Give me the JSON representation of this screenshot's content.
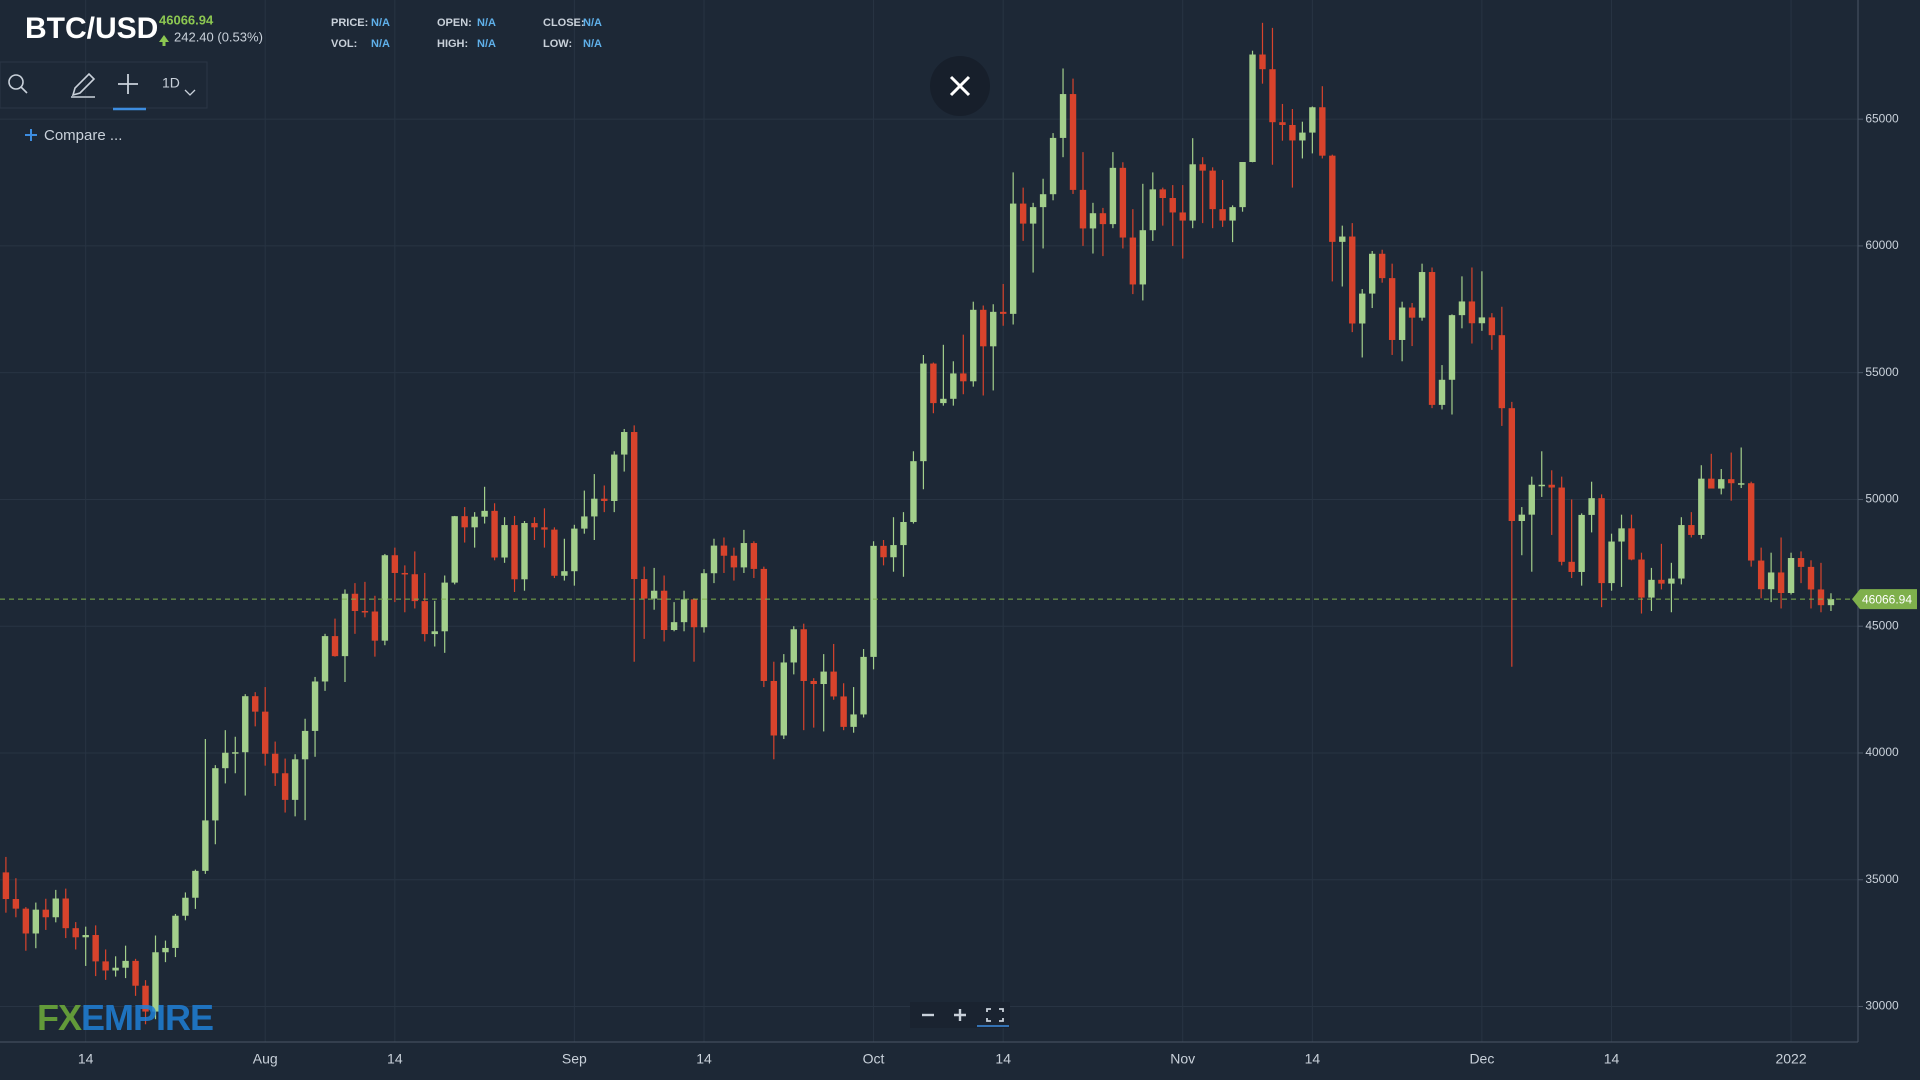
{
  "header": {
    "symbol": "BTC/USD",
    "change": "242.40 (0.53%)",
    "fields": [
      [
        "PRICE:",
        "N/A"
      ],
      [
        "OPEN:",
        "N/A"
      ],
      [
        "CLOSE:",
        "N/A"
      ],
      [
        "VOL:",
        "N/A"
      ],
      [
        "HIGH:",
        "N/A"
      ],
      [
        "LOW:",
        "N/A"
      ]
    ]
  },
  "toolbar": {
    "interval": "1D",
    "compare": "Compare ..."
  },
  "logo": [
    "FX",
    "EMPIRE"
  ],
  "chart_data": {
    "type": "candlestick",
    "title": "BTC/USD",
    "up_color": "#a3cf8b",
    "down_color": "#d8432c",
    "grid": true,
    "last_price": 46066.94,
    "last_price_color": "#7fb04c",
    "ylim": [
      28600,
      69700
    ],
    "yticks": [
      30000,
      35000,
      40000,
      45000,
      50000,
      55000,
      60000,
      65000
    ],
    "categories": [
      null,
      null,
      null,
      null,
      null,
      null,
      null,
      null,
      "14",
      null,
      null,
      null,
      null,
      null,
      null,
      null,
      null,
      null,
      null,
      null,
      null,
      null,
      null,
      null,
      null,
      null,
      "Aug",
      null,
      null,
      null,
      null,
      null,
      null,
      null,
      null,
      null,
      null,
      null,
      null,
      "14",
      null,
      null,
      null,
      null,
      null,
      null,
      null,
      null,
      null,
      null,
      null,
      null,
      null,
      null,
      null,
      null,
      null,
      "Sep",
      null,
      null,
      null,
      null,
      null,
      null,
      null,
      null,
      null,
      null,
      null,
      null,
      "14",
      null,
      null,
      null,
      null,
      null,
      null,
      null,
      null,
      null,
      null,
      null,
      null,
      null,
      null,
      null,
      null,
      "Oct",
      null,
      null,
      null,
      null,
      null,
      null,
      null,
      null,
      null,
      null,
      null,
      null,
      "14",
      null,
      null,
      null,
      null,
      null,
      null,
      null,
      null,
      null,
      null,
      null,
      null,
      null,
      null,
      null,
      null,
      null,
      "Nov",
      null,
      null,
      null,
      null,
      null,
      null,
      null,
      null,
      null,
      null,
      null,
      null,
      "14",
      null,
      null,
      null,
      null,
      null,
      null,
      null,
      null,
      null,
      null,
      null,
      null,
      null,
      null,
      null,
      null,
      "Dec",
      null,
      null,
      null,
      null,
      null,
      null,
      null,
      null,
      null,
      null,
      null,
      null,
      "14",
      null,
      null,
      null,
      null,
      null,
      null,
      null,
      null,
      null,
      null,
      null,
      null,
      null,
      null,
      null,
      null,
      null,
      "2022",
      null,
      null,
      null,
      null
    ],
    "ohlc": [
      [
        35290,
        35900,
        33700,
        34240
      ],
      [
        34240,
        35060,
        33520,
        33860
      ],
      [
        33860,
        33920,
        32200,
        32880
      ],
      [
        32880,
        34100,
        32300,
        33820
      ],
      [
        33820,
        34250,
        33020,
        33520
      ],
      [
        33520,
        34600,
        33320,
        34260
      ],
      [
        34260,
        34650,
        32700,
        33090
      ],
      [
        33090,
        33330,
        32250,
        32730
      ],
      [
        32730,
        33150,
        31600,
        32820
      ],
      [
        32820,
        33200,
        31200,
        31780
      ],
      [
        31780,
        32250,
        31050,
        31420
      ],
      [
        31420,
        31980,
        31180,
        31530
      ],
      [
        31530,
        32400,
        31120,
        31800
      ],
      [
        31800,
        31880,
        30420,
        30820
      ],
      [
        30820,
        31040,
        29300,
        29800
      ],
      [
        29800,
        32800,
        29500,
        32140
      ],
      [
        32140,
        32600,
        31750,
        32310
      ],
      [
        32310,
        33650,
        31950,
        33580
      ],
      [
        33580,
        34500,
        33400,
        34290
      ],
      [
        34290,
        35400,
        33850,
        35350
      ],
      [
        35350,
        40550,
        35230,
        37340
      ],
      [
        37340,
        39520,
        36400,
        39400
      ],
      [
        39400,
        40900,
        38800,
        40010
      ],
      [
        40010,
        40640,
        39200,
        40030
      ],
      [
        40030,
        42320,
        38320,
        42240
      ],
      [
        42240,
        42400,
        41050,
        41630
      ],
      [
        41630,
        42600,
        39500,
        39970
      ],
      [
        39970,
        40450,
        38700,
        39200
      ],
      [
        39200,
        39780,
        37650,
        38150
      ],
      [
        38150,
        39950,
        37500,
        39750
      ],
      [
        39750,
        41350,
        37350,
        40870
      ],
      [
        40870,
        43000,
        39850,
        42820
      ],
      [
        42820,
        44700,
        42450,
        44610
      ],
      [
        44610,
        45300,
        43800,
        43820
      ],
      [
        43820,
        46450,
        42800,
        46280
      ],
      [
        46280,
        46700,
        44700,
        45600
      ],
      [
        45600,
        46750,
        45350,
        45580
      ],
      [
        45580,
        46200,
        43800,
        44430
      ],
      [
        44430,
        47850,
        44250,
        47800
      ],
      [
        47800,
        48100,
        45950,
        47100
      ],
      [
        47100,
        47400,
        45550,
        47050
      ],
      [
        47050,
        47950,
        45700,
        45990
      ],
      [
        45990,
        47100,
        44400,
        44690
      ],
      [
        44690,
        46000,
        44200,
        44800
      ],
      [
        44800,
        47000,
        43950,
        46720
      ],
      [
        46720,
        49350,
        46650,
        49340
      ],
      [
        49340,
        49700,
        48300,
        48900
      ],
      [
        48900,
        49500,
        48100,
        49320
      ],
      [
        49320,
        50500,
        49050,
        49550
      ],
      [
        49550,
        49850,
        47600,
        47710
      ],
      [
        47710,
        49300,
        47500,
        48990
      ],
      [
        48990,
        49350,
        46350,
        46850
      ],
      [
        46850,
        49150,
        46400,
        49070
      ],
      [
        49070,
        49300,
        48400,
        48900
      ],
      [
        48900,
        49650,
        48100,
        48810
      ],
      [
        48810,
        48900,
        46900,
        46990
      ],
      [
        46990,
        48450,
        46800,
        47170
      ],
      [
        47170,
        49000,
        46600,
        48850
      ],
      [
        48850,
        50350,
        48650,
        49330
      ],
      [
        49330,
        51000,
        48400,
        50030
      ],
      [
        50030,
        50550,
        49500,
        49940
      ],
      [
        49940,
        51900,
        49500,
        51770
      ],
      [
        51770,
        52780,
        51100,
        52660
      ],
      [
        52660,
        52920,
        43600,
        46860
      ],
      [
        46860,
        47350,
        44500,
        46090
      ],
      [
        46090,
        47300,
        45650,
        46400
      ],
      [
        46400,
        47000,
        44400,
        44850
      ],
      [
        44850,
        45950,
        44800,
        45160
      ],
      [
        45160,
        46400,
        44800,
        46060
      ],
      [
        46060,
        46100,
        43600,
        44960
      ],
      [
        44960,
        47250,
        44750,
        47090
      ],
      [
        47090,
        48450,
        46700,
        48180
      ],
      [
        48180,
        48500,
        47100,
        47780
      ],
      [
        47780,
        48100,
        46800,
        47320
      ],
      [
        47320,
        48800,
        47100,
        48280
      ],
      [
        48280,
        48350,
        46900,
        47260
      ],
      [
        47260,
        47350,
        42600,
        42840
      ],
      [
        42840,
        43600,
        39750,
        40690
      ],
      [
        40690,
        43900,
        40550,
        43570
      ],
      [
        43570,
        45000,
        43100,
        44880
      ],
      [
        44880,
        45100,
        40900,
        42840
      ],
      [
        42840,
        42950,
        41000,
        42720
      ],
      [
        42720,
        43900,
        40850,
        43210
      ],
      [
        43210,
        44300,
        42100,
        42230
      ],
      [
        42230,
        42750,
        40900,
        41030
      ],
      [
        41030,
        42600,
        40800,
        41520
      ],
      [
        41520,
        44100,
        41400,
        43790
      ],
      [
        43790,
        48350,
        43300,
        48170
      ],
      [
        48170,
        48400,
        47400,
        47720
      ],
      [
        47720,
        49300,
        47150,
        48200
      ],
      [
        48200,
        49500,
        46950,
        49110
      ],
      [
        49110,
        51900,
        49050,
        51510
      ],
      [
        51510,
        55700,
        50400,
        55360
      ],
      [
        55360,
        55400,
        53400,
        53800
      ],
      [
        53800,
        56100,
        53700,
        53970
      ],
      [
        53970,
        55450,
        53700,
        54970
      ],
      [
        54970,
        56500,
        54150,
        54660
      ],
      [
        54660,
        57800,
        54450,
        57480
      ],
      [
        57480,
        57650,
        54100,
        56040
      ],
      [
        56040,
        57700,
        54300,
        57400
      ],
      [
        57400,
        58500,
        56850,
        57320
      ],
      [
        57320,
        62900,
        56900,
        61670
      ],
      [
        61670,
        62300,
        60200,
        60880
      ],
      [
        60880,
        61700,
        58950,
        61530
      ],
      [
        61530,
        62650,
        59900,
        62040
      ],
      [
        62040,
        64450,
        61800,
        64260
      ],
      [
        64260,
        67000,
        63500,
        65990
      ],
      [
        65990,
        66600,
        62050,
        62210
      ],
      [
        62210,
        63700,
        60000,
        60690
      ],
      [
        60690,
        61700,
        59700,
        61290
      ],
      [
        61290,
        61500,
        59600,
        60860
      ],
      [
        60860,
        63700,
        60700,
        63080
      ],
      [
        63080,
        63300,
        59900,
        60330
      ],
      [
        60330,
        61450,
        58100,
        58480
      ],
      [
        58480,
        62450,
        57850,
        60620
      ],
      [
        60620,
        62900,
        60200,
        62230
      ],
      [
        62230,
        62300,
        60800,
        61890
      ],
      [
        61890,
        62400,
        60000,
        61320
      ],
      [
        61320,
        62400,
        59500,
        61000
      ],
      [
        61000,
        64250,
        60700,
        63220
      ],
      [
        63220,
        63500,
        60900,
        62970
      ],
      [
        62970,
        63100,
        60700,
        61450
      ],
      [
        61450,
        62600,
        60750,
        61000
      ],
      [
        61000,
        61600,
        60150,
        61530
      ],
      [
        61530,
        63300,
        61350,
        63310
      ],
      [
        63310,
        67700,
        63300,
        67550
      ],
      [
        67550,
        68800,
        66400,
        66970
      ],
      [
        66970,
        68600,
        63200,
        64880
      ],
      [
        64880,
        65600,
        64150,
        64770
      ],
      [
        64770,
        65400,
        62300,
        64160
      ],
      [
        64160,
        64900,
        63450,
        64470
      ],
      [
        64470,
        65500,
        63650,
        65470
      ],
      [
        65470,
        66300,
        63450,
        63560
      ],
      [
        63560,
        63600,
        58600,
        60160
      ],
      [
        60160,
        60800,
        58400,
        60370
      ],
      [
        60370,
        60900,
        56600,
        56940
      ],
      [
        56940,
        58300,
        55600,
        58120
      ],
      [
        58120,
        59800,
        57550,
        59690
      ],
      [
        59690,
        59850,
        58550,
        58730
      ],
      [
        58730,
        59300,
        55700,
        56290
      ],
      [
        56290,
        57800,
        55450,
        57570
      ],
      [
        57570,
        57750,
        56050,
        57170
      ],
      [
        57170,
        59300,
        57050,
        58970
      ],
      [
        58970,
        59150,
        53600,
        53730
      ],
      [
        53730,
        55300,
        53550,
        54720
      ],
      [
        54720,
        57300,
        53350,
        57270
      ],
      [
        57270,
        58800,
        56750,
        57810
      ],
      [
        57810,
        59150,
        56150,
        56950
      ],
      [
        56950,
        59000,
        56650,
        57180
      ],
      [
        57180,
        57350,
        55900,
        56480
      ],
      [
        56480,
        57600,
        52900,
        53600
      ],
      [
        53600,
        53850,
        43400,
        49150
      ],
      [
        49150,
        49700,
        47800,
        49400
      ],
      [
        49400,
        50900,
        47150,
        50580
      ],
      [
        50580,
        51900,
        50100,
        50580
      ],
      [
        50580,
        51150,
        48600,
        50470
      ],
      [
        50470,
        50900,
        47400,
        47540
      ],
      [
        47540,
        50000,
        46900,
        47140
      ],
      [
        47140,
        49450,
        46600,
        49390
      ],
      [
        49390,
        50700,
        48700,
        50050
      ],
      [
        50050,
        50200,
        45750,
        46700
      ],
      [
        46700,
        48650,
        46400,
        48340
      ],
      [
        48340,
        49400,
        46550,
        48860
      ],
      [
        48860,
        49400,
        47600,
        47630
      ],
      [
        47630,
        47900,
        45500,
        46130
      ],
      [
        46130,
        47300,
        45600,
        46830
      ],
      [
        46830,
        48250,
        46450,
        46680
      ],
      [
        46680,
        47500,
        45550,
        46880
      ],
      [
        46880,
        49300,
        46650,
        48990
      ],
      [
        48990,
        49500,
        48500,
        48600
      ],
      [
        48600,
        51350,
        48450,
        50820
      ],
      [
        50820,
        51800,
        50450,
        50430
      ],
      [
        50430,
        51200,
        50200,
        50800
      ],
      [
        50800,
        51850,
        49950,
        50640
      ],
      [
        50640,
        52050,
        50450,
        50640
      ],
      [
        50640,
        50700,
        47350,
        47590
      ],
      [
        47590,
        48100,
        46100,
        46460
      ],
      [
        46460,
        47900,
        45950,
        47120
      ],
      [
        47120,
        48500,
        45700,
        46310
      ],
      [
        46310,
        47900,
        46250,
        47690
      ],
      [
        47690,
        47950,
        46700,
        47340
      ],
      [
        47340,
        47600,
        45700,
        46450
      ],
      [
        46450,
        47500,
        45550,
        45830
      ],
      [
        45830,
        46300,
        45600,
        46066.94
      ]
    ]
  }
}
